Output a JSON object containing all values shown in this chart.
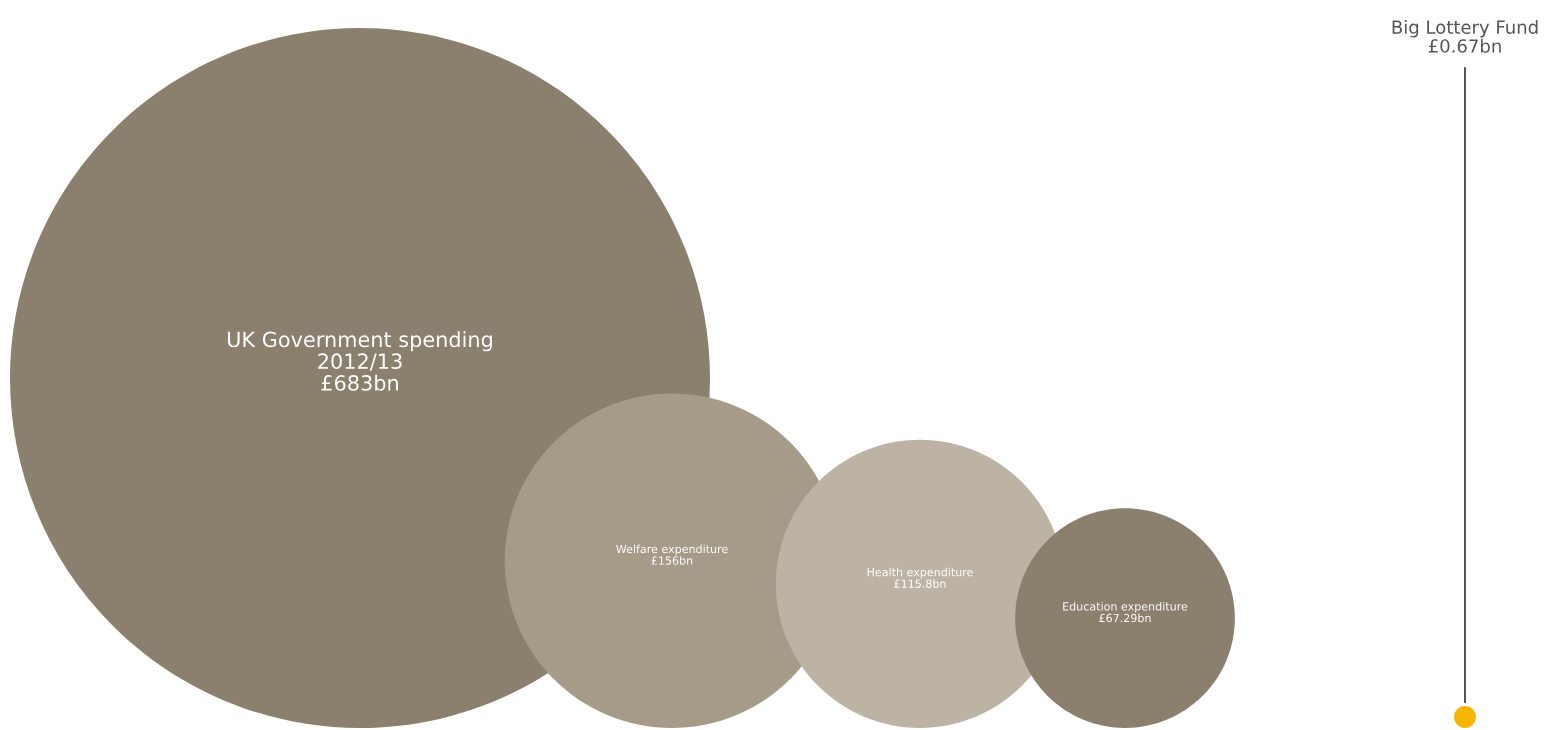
{
  "chart_data": {
    "type": "other",
    "categories": [
      "UK Government spending\n2012/13",
      "Welfare expenditure",
      "Health expenditure",
      "Education expenditure",
      "Big Lottery Fund"
    ],
    "values": [
      683,
      156,
      115.8,
      67.29,
      0.67
    ],
    "value_labels": [
      "£683bn",
      "£156bn",
      "£115.8bn",
      "£67.29bn",
      "£0.67bn"
    ],
    "colors": [
      "#8b7f6e",
      "#a69a89",
      "#bcb3a4",
      "#8b7f6e",
      "#f7b500"
    ]
  }
}
